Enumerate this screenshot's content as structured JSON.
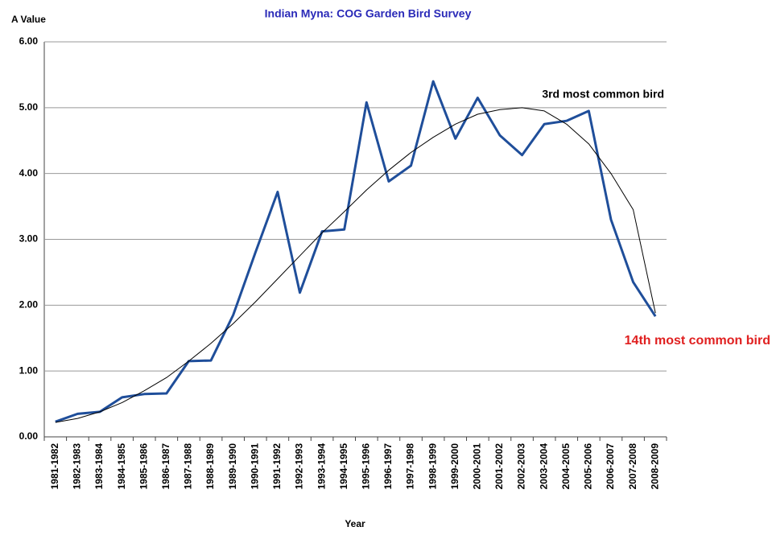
{
  "chart_data": {
    "type": "line",
    "title": "Indian Myna:  COG Garden Bird Survey",
    "y_label": "A Value",
    "x_label": "Year",
    "categories": [
      "1981-1982",
      "1982-1983",
      "1983-1984",
      "1984-1985",
      "1985-1986",
      "1986-1987",
      "1987-1988",
      "1988-1989",
      "1989-1990",
      "1990-1991",
      "1991-1992",
      "1992-1993",
      "1993-1994",
      "1994-1995",
      "1995-1996",
      "1996-1997",
      "1997-1998",
      "1998-1999",
      "1999-2000",
      "2000-2001",
      "2001-2002",
      "2002-2003",
      "2003-2004",
      "2004-2005",
      "2005-2006",
      "2006-2007",
      "2007-2008",
      "2008-2009"
    ],
    "series": [
      {
        "color": "#1f4e9a",
        "values": [
          0.23,
          0.35,
          0.38,
          0.6,
          0.65,
          0.66,
          1.15,
          1.16,
          1.85,
          2.8,
          3.72,
          2.19,
          3.12,
          3.15,
          5.08,
          3.88,
          4.12,
          5.4,
          4.53,
          5.15,
          4.58,
          4.28,
          4.75,
          4.8,
          4.95,
          3.3,
          2.35,
          1.83
        ]
      },
      {
        "color": "#000000",
        "values": [
          0.22,
          0.28,
          0.38,
          0.52,
          0.7,
          0.9,
          1.15,
          1.42,
          1.72,
          2.05,
          2.4,
          2.75,
          3.1,
          3.42,
          3.75,
          4.05,
          4.32,
          4.55,
          4.75,
          4.9,
          4.97,
          5.0,
          4.95,
          4.75,
          4.45,
          4.0,
          3.45,
          1.88
        ]
      }
    ],
    "ylim": [
      0,
      6
    ],
    "yticks": [
      {
        "value": 0,
        "label": "0.00"
      },
      {
        "value": 1,
        "label": "1.00"
      },
      {
        "value": 2,
        "label": "2.00"
      },
      {
        "value": 3,
        "label": "3.00"
      },
      {
        "value": 4,
        "label": "4.00"
      },
      {
        "value": 5,
        "label": "5.00"
      },
      {
        "value": 6,
        "label": "6.00"
      }
    ],
    "grid": true,
    "annotations": [
      {
        "text": "3rd most common bird",
        "color": "#000000"
      },
      {
        "text": "14th most common bird",
        "color": "#e02020"
      }
    ]
  }
}
